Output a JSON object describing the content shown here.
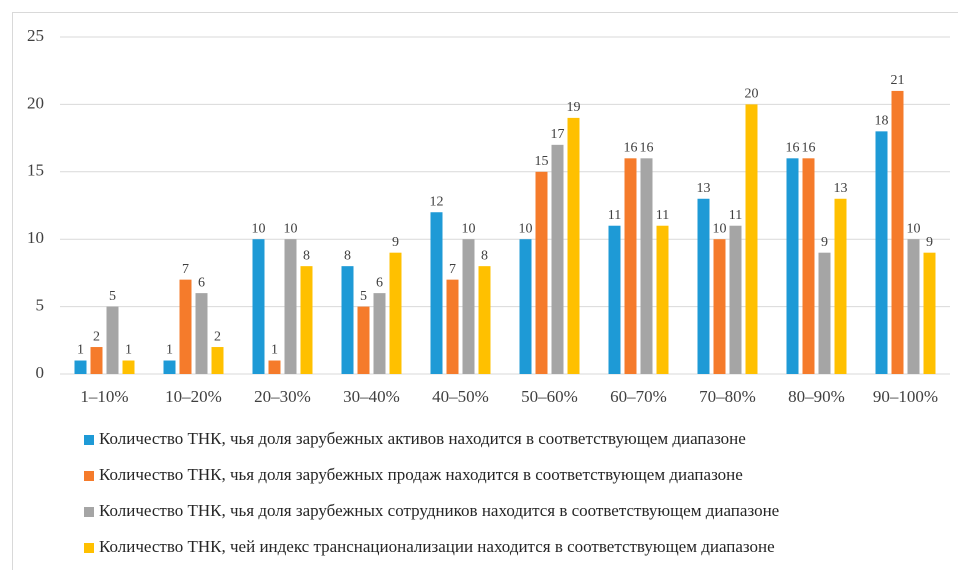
{
  "chart_data": {
    "type": "bar",
    "categories": [
      "1–10%",
      "10–20%",
      "20–30%",
      "30–40%",
      "40–50%",
      "50–60%",
      "60–70%",
      "70–80%",
      "80–90%",
      "90–100%"
    ],
    "series": [
      {
        "name": "Количество ТНК, чья доля зарубежных активов находится в соответствующем диапазоне",
        "color": "#1e9ad6",
        "values": [
          1,
          1,
          10,
          8,
          12,
          10,
          11,
          13,
          16,
          18
        ]
      },
      {
        "name": "Количество ТНК, чья доля зарубежных продаж находится в соответствующем диапазоне",
        "color": "#f57b2b",
        "values": [
          2,
          7,
          1,
          5,
          7,
          15,
          16,
          10,
          16,
          21
        ]
      },
      {
        "name": "Количество ТНК, чья доля зарубежных сотрудников находится в соответствующем диапазоне",
        "color": "#a5a5a5",
        "values": [
          5,
          6,
          10,
          6,
          10,
          17,
          16,
          11,
          9,
          10
        ]
      },
      {
        "name": "Количество ТНК, чей индекс транснационализации находится в соответствующем диапазоне",
        "color": "#ffc000",
        "values": [
          1,
          2,
          8,
          9,
          8,
          19,
          11,
          20,
          13,
          9
        ]
      }
    ],
    "ylim": [
      0,
      25
    ],
    "yticks": [
      0,
      5,
      10,
      15,
      20,
      25
    ],
    "grid": true,
    "legend": "bottom"
  }
}
